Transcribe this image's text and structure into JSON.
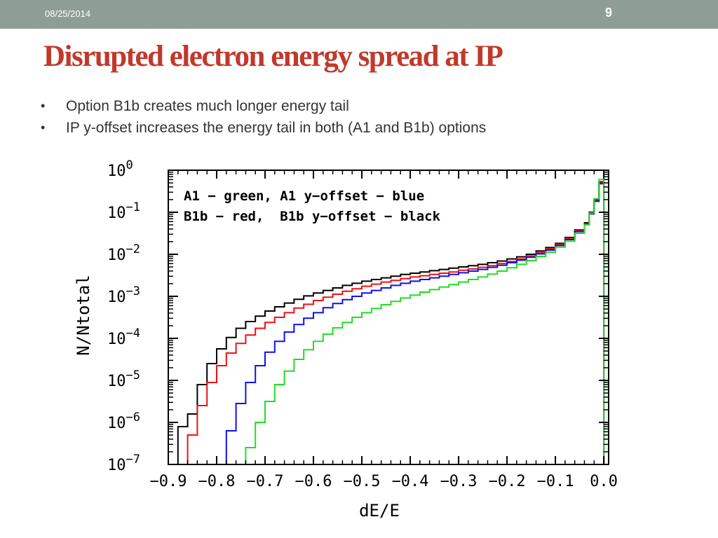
{
  "header": {
    "date": "08/25/2014",
    "page_number": "9"
  },
  "slide": {
    "title": "Disrupted electron energy spread at IP",
    "bullets": [
      "Option B1b creates much longer energy tail",
      "IP y-offset increases the energy tail in both (A1 and B1b) options"
    ]
  },
  "colors": {
    "header_bar": "#8e9e96",
    "title": "#c0392b",
    "green": "#22dd22",
    "blue": "#1010ee",
    "red": "#ee1111",
    "black": "#000000"
  },
  "chart_data": {
    "type": "line",
    "xlabel": "dE/E",
    "ylabel": "N/Ntotal",
    "xlim": [
      -0.9,
      0.01
    ],
    "ylim_exponent": [
      -7,
      0
    ],
    "y_scale": "log",
    "grid": false,
    "x_ticks": [
      {
        "value": -0.9,
        "label": "−0.9"
      },
      {
        "value": -0.8,
        "label": "−0.8"
      },
      {
        "value": -0.7,
        "label": "−0.7"
      },
      {
        "value": -0.6,
        "label": "−0.6"
      },
      {
        "value": -0.5,
        "label": "−0.5"
      },
      {
        "value": -0.4,
        "label": "−0.4"
      },
      {
        "value": -0.3,
        "label": "−0.3"
      },
      {
        "value": -0.2,
        "label": "−0.2"
      },
      {
        "value": -0.1,
        "label": "−0.1"
      },
      {
        "value": 0.0,
        "label": "0.0"
      }
    ],
    "y_ticks": [
      {
        "exp": 0,
        "base": "10",
        "sup": "0"
      },
      {
        "exp": -1,
        "base": "10",
        "sup": "−1"
      },
      {
        "exp": -2,
        "base": "10",
        "sup": "−2"
      },
      {
        "exp": -3,
        "base": "10",
        "sup": "−3"
      },
      {
        "exp": -4,
        "base": "10",
        "sup": "−4"
      },
      {
        "exp": -5,
        "base": "10",
        "sup": "−5"
      },
      {
        "exp": -6,
        "base": "10",
        "sup": "−6"
      },
      {
        "exp": -7,
        "base": "10",
        "sup": "−7"
      }
    ],
    "annotation": [
      "A1 − green, A1 y−offset − blue",
      "B1b − red,  B1b y−offset − black"
    ],
    "series": [
      {
        "color": "#000000",
        "points": [
          [
            -0.86,
            -6.1
          ],
          [
            -0.84,
            -5.8
          ],
          [
            -0.82,
            -5.1
          ],
          [
            -0.8,
            -4.6
          ],
          [
            -0.78,
            -4.25
          ],
          [
            -0.76,
            -3.98
          ],
          [
            -0.74,
            -3.76
          ],
          [
            -0.72,
            -3.6
          ],
          [
            -0.7,
            -3.47
          ],
          [
            -0.68,
            -3.35
          ],
          [
            -0.66,
            -3.25
          ],
          [
            -0.64,
            -3.16
          ],
          [
            -0.62,
            -3.07
          ],
          [
            -0.6,
            -2.99
          ],
          [
            -0.58,
            -2.92
          ],
          [
            -0.56,
            -2.86
          ],
          [
            -0.54,
            -2.8
          ],
          [
            -0.52,
            -2.74
          ],
          [
            -0.5,
            -2.69
          ],
          [
            -0.48,
            -2.64
          ],
          [
            -0.46,
            -2.6
          ],
          [
            -0.44,
            -2.56
          ],
          [
            -0.42,
            -2.52
          ],
          [
            -0.4,
            -2.48
          ],
          [
            -0.38,
            -2.45
          ],
          [
            -0.36,
            -2.42
          ],
          [
            -0.34,
            -2.39
          ],
          [
            -0.32,
            -2.36
          ],
          [
            -0.3,
            -2.33
          ],
          [
            -0.28,
            -2.3
          ],
          [
            -0.26,
            -2.27
          ],
          [
            -0.24,
            -2.24
          ],
          [
            -0.22,
            -2.2
          ],
          [
            -0.2,
            -2.16
          ],
          [
            -0.18,
            -2.11
          ],
          [
            -0.16,
            -2.06
          ],
          [
            -0.14,
            -2.0
          ],
          [
            -0.12,
            -1.92
          ],
          [
            -0.1,
            -1.84
          ],
          [
            -0.08,
            -1.74
          ],
          [
            -0.06,
            -1.6
          ],
          [
            -0.04,
            -1.42
          ],
          [
            -0.03,
            -1.25
          ],
          [
            -0.02,
            -1.0
          ],
          [
            -0.01,
            -0.7
          ],
          [
            0.0,
            -0.28
          ]
        ]
      },
      {
        "color": "#ee1111",
        "points": [
          [
            -0.84,
            -6.3
          ],
          [
            -0.82,
            -5.6
          ],
          [
            -0.8,
            -5.05
          ],
          [
            -0.78,
            -4.65
          ],
          [
            -0.76,
            -4.35
          ],
          [
            -0.74,
            -4.12
          ],
          [
            -0.72,
            -3.92
          ],
          [
            -0.7,
            -3.76
          ],
          [
            -0.68,
            -3.62
          ],
          [
            -0.66,
            -3.5
          ],
          [
            -0.64,
            -3.39
          ],
          [
            -0.62,
            -3.28
          ],
          [
            -0.6,
            -3.19
          ],
          [
            -0.58,
            -3.1
          ],
          [
            -0.56,
            -3.02
          ],
          [
            -0.54,
            -2.95
          ],
          [
            -0.52,
            -2.88
          ],
          [
            -0.5,
            -2.82
          ],
          [
            -0.48,
            -2.76
          ],
          [
            -0.46,
            -2.71
          ],
          [
            -0.44,
            -2.66
          ],
          [
            -0.42,
            -2.62
          ],
          [
            -0.4,
            -2.58
          ],
          [
            -0.38,
            -2.54
          ],
          [
            -0.36,
            -2.51
          ],
          [
            -0.34,
            -2.48
          ],
          [
            -0.32,
            -2.45
          ],
          [
            -0.3,
            -2.42
          ],
          [
            -0.28,
            -2.38
          ],
          [
            -0.26,
            -2.35
          ],
          [
            -0.24,
            -2.31
          ],
          [
            -0.22,
            -2.27
          ],
          [
            -0.2,
            -2.22
          ],
          [
            -0.18,
            -2.17
          ],
          [
            -0.16,
            -2.11
          ],
          [
            -0.14,
            -2.04
          ],
          [
            -0.12,
            -1.96
          ],
          [
            -0.1,
            -1.87
          ],
          [
            -0.08,
            -1.76
          ],
          [
            -0.06,
            -1.62
          ],
          [
            -0.04,
            -1.44
          ],
          [
            -0.03,
            -1.27
          ],
          [
            -0.02,
            -1.02
          ],
          [
            -0.01,
            -0.72
          ],
          [
            0.0,
            -0.3
          ]
        ]
      },
      {
        "color": "#1010ee",
        "points": [
          [
            -0.76,
            -6.2
          ],
          [
            -0.74,
            -5.55
          ],
          [
            -0.72,
            -5.05
          ],
          [
            -0.7,
            -4.65
          ],
          [
            -0.68,
            -4.33
          ],
          [
            -0.66,
            -4.07
          ],
          [
            -0.64,
            -3.85
          ],
          [
            -0.62,
            -3.67
          ],
          [
            -0.6,
            -3.52
          ],
          [
            -0.58,
            -3.39
          ],
          [
            -0.56,
            -3.27
          ],
          [
            -0.54,
            -3.17
          ],
          [
            -0.52,
            -3.08
          ],
          [
            -0.5,
            -3.0
          ],
          [
            -0.48,
            -2.92
          ],
          [
            -0.46,
            -2.86
          ],
          [
            -0.44,
            -2.8
          ],
          [
            -0.42,
            -2.74
          ],
          [
            -0.4,
            -2.69
          ],
          [
            -0.38,
            -2.64
          ],
          [
            -0.36,
            -2.6
          ],
          [
            -0.34,
            -2.56
          ],
          [
            -0.32,
            -2.52
          ],
          [
            -0.3,
            -2.48
          ],
          [
            -0.28,
            -2.44
          ],
          [
            -0.26,
            -2.4
          ],
          [
            -0.24,
            -2.36
          ],
          [
            -0.22,
            -2.31
          ],
          [
            -0.2,
            -2.26
          ],
          [
            -0.18,
            -2.2
          ],
          [
            -0.16,
            -2.14
          ],
          [
            -0.14,
            -2.07
          ],
          [
            -0.12,
            -1.99
          ],
          [
            -0.1,
            -1.9
          ],
          [
            -0.08,
            -1.79
          ],
          [
            -0.06,
            -1.65
          ],
          [
            -0.04,
            -1.46
          ],
          [
            -0.03,
            -1.29
          ],
          [
            -0.02,
            -1.04
          ],
          [
            -0.01,
            -0.74
          ],
          [
            0.0,
            -0.32
          ]
        ]
      },
      {
        "color": "#22dd22",
        "points": [
          [
            -0.72,
            -6.6
          ],
          [
            -0.7,
            -6.0
          ],
          [
            -0.68,
            -5.5
          ],
          [
            -0.66,
            -5.1
          ],
          [
            -0.64,
            -4.78
          ],
          [
            -0.62,
            -4.5
          ],
          [
            -0.6,
            -4.27
          ],
          [
            -0.58,
            -4.07
          ],
          [
            -0.56,
            -3.9
          ],
          [
            -0.54,
            -3.75
          ],
          [
            -0.52,
            -3.62
          ],
          [
            -0.5,
            -3.5
          ],
          [
            -0.48,
            -3.39
          ],
          [
            -0.46,
            -3.29
          ],
          [
            -0.44,
            -3.2
          ],
          [
            -0.42,
            -3.12
          ],
          [
            -0.4,
            -3.04
          ],
          [
            -0.38,
            -2.97
          ],
          [
            -0.36,
            -2.9
          ],
          [
            -0.34,
            -2.84
          ],
          [
            -0.32,
            -2.78
          ],
          [
            -0.3,
            -2.72
          ],
          [
            -0.28,
            -2.66
          ],
          [
            -0.26,
            -2.6
          ],
          [
            -0.24,
            -2.54
          ],
          [
            -0.22,
            -2.47
          ],
          [
            -0.2,
            -2.4
          ],
          [
            -0.18,
            -2.32
          ],
          [
            -0.16,
            -2.24
          ],
          [
            -0.14,
            -2.15
          ],
          [
            -0.12,
            -2.05
          ],
          [
            -0.1,
            -1.95
          ],
          [
            -0.08,
            -1.83
          ],
          [
            -0.06,
            -1.69
          ],
          [
            -0.04,
            -1.5
          ],
          [
            -0.03,
            -1.3
          ],
          [
            -0.02,
            -1.02
          ],
          [
            -0.01,
            -0.68
          ],
          [
            0.0,
            -0.22
          ]
        ]
      }
    ]
  }
}
